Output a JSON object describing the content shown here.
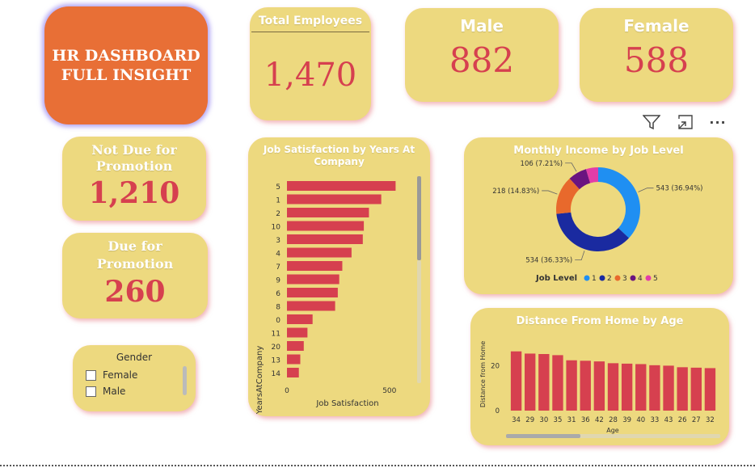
{
  "dashboard": {
    "title_line1": "HR DASHBOARD",
    "title_line2": "FULL INSIGHT"
  },
  "kpis": {
    "total_employees": {
      "label": "Total Employees",
      "value": "1,470"
    },
    "male": {
      "label": "Male",
      "value": "882"
    },
    "female": {
      "label": "Female",
      "value": "588"
    },
    "not_due": {
      "label_line1": "Not Due for",
      "label_line2": "Promotion",
      "value": "1,210"
    },
    "due": {
      "label_line1": "Due for",
      "label_line2": "Promotion",
      "value": "260"
    }
  },
  "slicer": {
    "title": "Gender",
    "options": [
      "Female",
      "Male"
    ]
  },
  "toolbar": {
    "filter_icon": "filter-icon",
    "focus_icon": "focus-mode-icon",
    "more_icon": "more-options-icon",
    "more_label": "···"
  },
  "colors": {
    "accent_orange": "#e86f36",
    "card_bg": "#edd97f",
    "value_red": "#d6404f",
    "bar_red": "#d6404f"
  },
  "chart_data": [
    {
      "type": "bar",
      "orientation": "horizontal",
      "title_line1": "Job Satisfaction by Years At",
      "title_line2": "Company",
      "xlabel": "Job Satisfaction",
      "ylabel": "YearsAtCompany",
      "categories": [
        "5",
        "1",
        "2",
        "10",
        "3",
        "4",
        "7",
        "9",
        "6",
        "8",
        "0",
        "11",
        "20",
        "13",
        "14"
      ],
      "values": [
        530,
        460,
        400,
        375,
        370,
        315,
        270,
        255,
        248,
        235,
        125,
        100,
        82,
        65,
        58
      ],
      "xlim": [
        0,
        560
      ],
      "xticks": [
        "0",
        "500"
      ],
      "xtick_values": [
        0,
        500
      ]
    },
    {
      "type": "pie",
      "variant": "donut",
      "title": "Monthly Income by Job Level",
      "legend_title": "Job Level",
      "legend_position": "bottom",
      "slices": [
        {
          "name": "1",
          "value": 543,
          "label": "543 (36.94%)",
          "color": "#1f8ff2"
        },
        {
          "name": "2",
          "value": 534,
          "label": "534 (36.33%)",
          "color": "#1a2aa0"
        },
        {
          "name": "3",
          "value": 218,
          "label": "218 (14.83%)",
          "color": "#e8692c"
        },
        {
          "name": "4",
          "value": 106,
          "label": "106 (7.21%)",
          "color": "#6a1480"
        },
        {
          "name": "5",
          "value": 69,
          "label": "",
          "color": "#e23da8"
        }
      ]
    },
    {
      "type": "bar",
      "title": "Distance From Home by Age",
      "xlabel": "Age",
      "ylabel": "Distance from Home",
      "categories": [
        "34",
        "29",
        "30",
        "35",
        "31",
        "36",
        "42",
        "28",
        "39",
        "40",
        "33",
        "43",
        "26",
        "27",
        "32"
      ],
      "values": [
        26.5,
        25.5,
        25.3,
        24.8,
        22.5,
        22.3,
        22.0,
        21.2,
        21.0,
        20.8,
        20.3,
        20.1,
        19.4,
        19.2,
        19.0
      ],
      "ylim": [
        0,
        30
      ],
      "yticks": [
        "0",
        "20"
      ],
      "ytick_values": [
        0,
        20
      ]
    }
  ]
}
